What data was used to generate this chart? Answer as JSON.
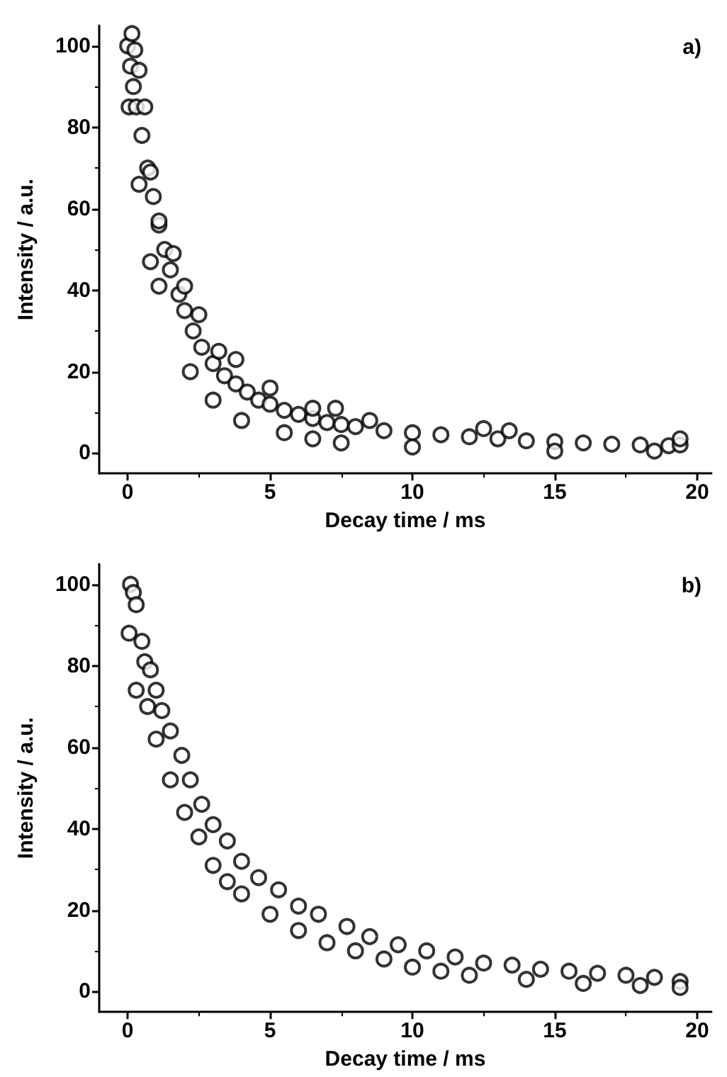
{
  "chart_data": [
    {
      "type": "scatter",
      "xlabel": "Decay time / ms",
      "ylabel": "Intensity / a.u.",
      "annotations": [
        "a)"
      ],
      "marker": "circle",
      "grid": false,
      "xlim": [
        -1,
        20.5
      ],
      "xticks": [
        0,
        5,
        10,
        15,
        20
      ],
      "ylim": [
        -5,
        105
      ],
      "yticks": [
        0,
        20,
        40,
        60,
        80,
        100
      ],
      "series": [
        {
          "color": "#000000",
          "x": [
            0,
            0.05,
            0.1,
            0.15,
            0.2,
            0.25,
            0.3,
            0.4,
            0.4,
            0.5,
            0.6,
            0.7,
            0.8,
            0.8,
            0.9,
            1.1,
            1.1,
            1.1,
            1.3,
            1.5,
            1.6,
            1.8,
            2.0,
            2.0,
            2.2,
            2.3,
            2.5,
            2.6,
            3.0,
            3.0,
            3.2,
            3.4,
            3.8,
            3.8,
            4.0,
            4.2,
            4.6,
            5.0,
            5.0,
            5.5,
            5.5,
            6.0,
            6.5,
            6.5,
            6.5,
            7.0,
            7.3,
            7.5,
            7.5,
            8.0,
            8.5,
            9.0,
            10.0,
            10.0,
            11.0,
            12.0,
            12.5,
            13.0,
            13.4,
            14.0,
            15.0,
            15.0,
            16.0,
            17.0,
            18.0,
            18.5,
            19.0,
            19.4,
            19.4
          ],
          "values": [
            100,
            85,
            95,
            103,
            90,
            99,
            85,
            94,
            66,
            78,
            85,
            70,
            69,
            47,
            63,
            56,
            57,
            41,
            50,
            45,
            49,
            39,
            35,
            41,
            20,
            30,
            34,
            26,
            22,
            13,
            25,
            19,
            17,
            23,
            8,
            15,
            13,
            12,
            16,
            10.5,
            5,
            9.5,
            8.5,
            11,
            3.5,
            7.5,
            11,
            7,
            2.5,
            6.5,
            8,
            5.5,
            5,
            1.5,
            4.5,
            4,
            6,
            3.5,
            5.5,
            3,
            2.8,
            0.5,
            2.5,
            2.2,
            2,
            0.5,
            1.8,
            2,
            3.5
          ]
        }
      ]
    },
    {
      "type": "scatter",
      "xlabel": "Decay time / ms",
      "ylabel": "Intensity / a.u.",
      "annotations": [
        "b)"
      ],
      "marker": "circle",
      "grid": false,
      "xlim": [
        -1,
        20.5
      ],
      "xticks": [
        0,
        5,
        10,
        15,
        20
      ],
      "ylim": [
        -5,
        105
      ],
      "yticks": [
        0,
        20,
        40,
        60,
        80,
        100
      ],
      "series": [
        {
          "color": "#000000",
          "x": [
            0.05,
            0.1,
            0.2,
            0.3,
            0.3,
            0.5,
            0.6,
            0.7,
            0.8,
            1.0,
            1.0,
            1.2,
            1.5,
            1.5,
            1.9,
            2.0,
            2.2,
            2.5,
            2.6,
            3.0,
            3.0,
            3.5,
            3.5,
            4.0,
            4.0,
            4.6,
            5.0,
            5.3,
            6.0,
            6.0,
            6.7,
            7.0,
            7.7,
            8.0,
            8.5,
            9.0,
            9.5,
            10.0,
            10.5,
            11.0,
            11.5,
            12.0,
            12.5,
            13.5,
            14.0,
            14.5,
            15.5,
            16.0,
            16.5,
            17.5,
            18.0,
            18.5,
            19.4,
            19.4
          ],
          "values": [
            88,
            100,
            98,
            95,
            74,
            86,
            81,
            70,
            79,
            74,
            62,
            69,
            64,
            52,
            58,
            44,
            52,
            38,
            46,
            41,
            31,
            37,
            27,
            32,
            24,
            28,
            19,
            25,
            21,
            15,
            19,
            12,
            16,
            10,
            13.5,
            8,
            11.5,
            6,
            10,
            5,
            8.5,
            4,
            7,
            6.5,
            3,
            5.5,
            5,
            2,
            4.5,
            4,
            1.5,
            3.5,
            2.5,
            1
          ]
        }
      ]
    }
  ]
}
